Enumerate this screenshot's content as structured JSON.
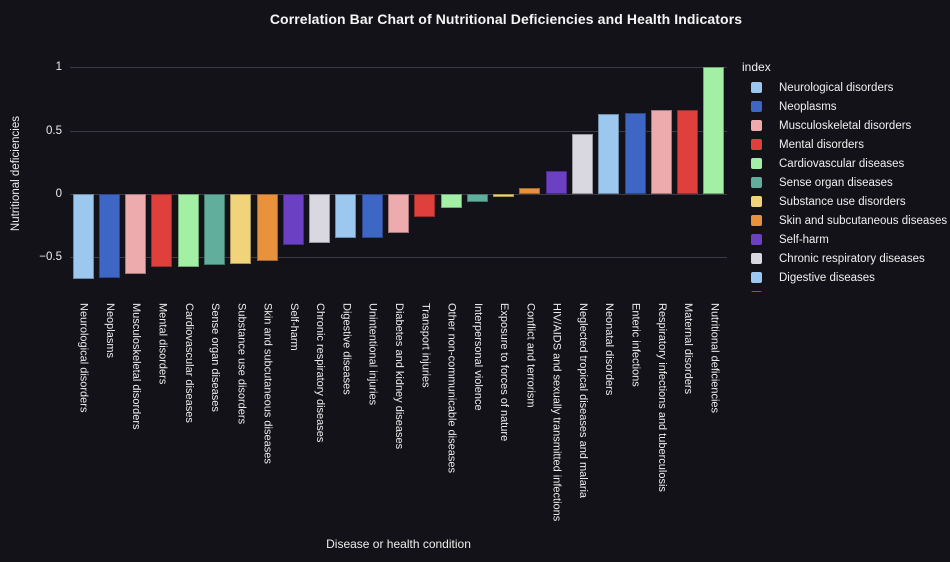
{
  "page": {
    "background": "#131218",
    "grid_color": "#3c3b45",
    "text_color": "#ededed"
  },
  "chart_data": {
    "type": "bar",
    "title": "Correlation Bar Chart of Nutritional Deficiencies and Health Indicators",
    "xlabel": "Disease or health condition",
    "ylabel": "Nutritional deficiencies",
    "ylim": [
      -0.77,
      1.1
    ],
    "grid": true,
    "legend_position": "right",
    "yticks": [
      {
        "value": 1,
        "label": "1"
      },
      {
        "value": 0.5,
        "label": "0.5"
      },
      {
        "value": 0,
        "label": "0"
      },
      {
        "value": -0.5,
        "label": "−0.5"
      }
    ],
    "categories": [
      "Neurological disorders",
      "Neoplasms",
      "Musculoskeletal disorders",
      "Mental disorders",
      "Cardiovascular diseases",
      "Sense organ diseases",
      "Substance use disorders",
      "Skin and subcutaneous diseases",
      "Self-harm",
      "Chronic respiratory diseases",
      "Digestive diseases",
      "Unintentional injuries",
      "Diabetes and kidney diseases",
      "Transport injuries",
      "Other non-communicable diseases",
      "Interpersonal violence",
      "Exposure to forces of nature",
      "Conflict and terrorism",
      "HIV/AIDS and sexually transmitted infections",
      "Neglected tropical diseases and malaria",
      "Neonatal disorders",
      "Enteric infections",
      "Respiratory infections and tuberculosis",
      "Maternal disorders",
      "Nutritional deficiencies"
    ],
    "values": [
      -0.67,
      -0.66,
      -0.63,
      -0.58,
      -0.58,
      -0.56,
      -0.55,
      -0.53,
      -0.4,
      -0.39,
      -0.35,
      -0.35,
      -0.31,
      -0.18,
      -0.11,
      -0.06,
      -0.02,
      0.05,
      0.18,
      0.47,
      0.63,
      0.64,
      0.66,
      0.66,
      1.0
    ],
    "palette": [
      "#9CC8F0",
      "#3E66C5",
      "#EEABAE",
      "#DF403B",
      "#A2EFA5",
      "#60AE9B",
      "#F1D37C",
      "#E8923E",
      "#6B40C3",
      "#D9D8E1"
    ]
  },
  "legend": {
    "title": "index",
    "items": [
      {
        "label": "Neurological disorders",
        "color": "#9CC8F0"
      },
      {
        "label": "Neoplasms",
        "color": "#3E66C5"
      },
      {
        "label": "Musculoskeletal disorders",
        "color": "#EEABAE"
      },
      {
        "label": "Mental disorders",
        "color": "#DF403B"
      },
      {
        "label": "Cardiovascular diseases",
        "color": "#A2EFA5"
      },
      {
        "label": "Sense organ diseases",
        "color": "#60AE9B"
      },
      {
        "label": "Substance use disorders",
        "color": "#F1D37C"
      },
      {
        "label": "Skin and subcutaneous diseases",
        "color": "#E8923E"
      },
      {
        "label": "Self-harm",
        "color": "#6B40C3"
      },
      {
        "label": "Chronic respiratory diseases",
        "color": "#D9D8E1"
      },
      {
        "label": "Digestive diseases",
        "color": "#9CC8F0"
      }
    ],
    "clipped_swatch_color": "#3E66C5"
  }
}
